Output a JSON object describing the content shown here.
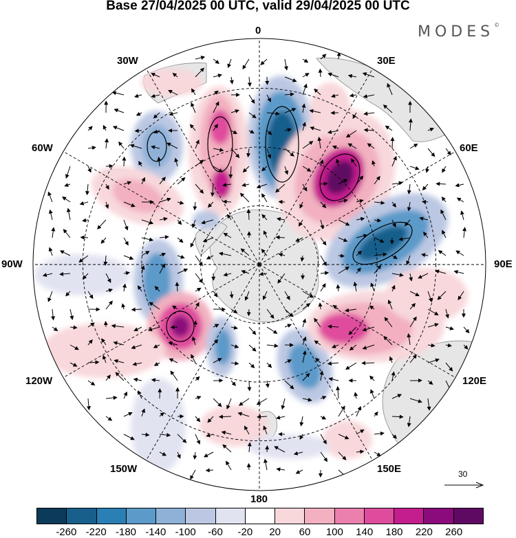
{
  "title": "Base 27/04/2025 00 UTC, valid 29/04/2025 00 UTC",
  "brand": "MODES",
  "brand_mark": "©",
  "map": {
    "projection": "south polar stereographic",
    "longitude_labels": [
      "0",
      "30E",
      "60E",
      "90E",
      "120E",
      "150E",
      "180",
      "150W",
      "120W",
      "90W",
      "60W",
      "30W"
    ],
    "land_color": "#e6e6e6",
    "coastline_color": "#8a8a8a",
    "graticule": "dashed"
  },
  "vectors": {
    "reference_label": "30"
  },
  "colorbar": {
    "tick_labels": [
      "-260",
      "-220",
      "-180",
      "-140",
      "-100",
      "-60",
      "-20",
      "20",
      "60",
      "100",
      "140",
      "180",
      "220",
      "260"
    ],
    "colors": [
      "#0c3a5a",
      "#185f8c",
      "#2a7fb5",
      "#5b9ac9",
      "#8fb1d7",
      "#bcc8e3",
      "#e2e3f1",
      "#ffffff",
      "#f8d8db",
      "#f2b0c0",
      "#ec80ad",
      "#df4c9d",
      "#c41d8e",
      "#8b0a7c",
      "#5e0a62"
    ]
  }
}
